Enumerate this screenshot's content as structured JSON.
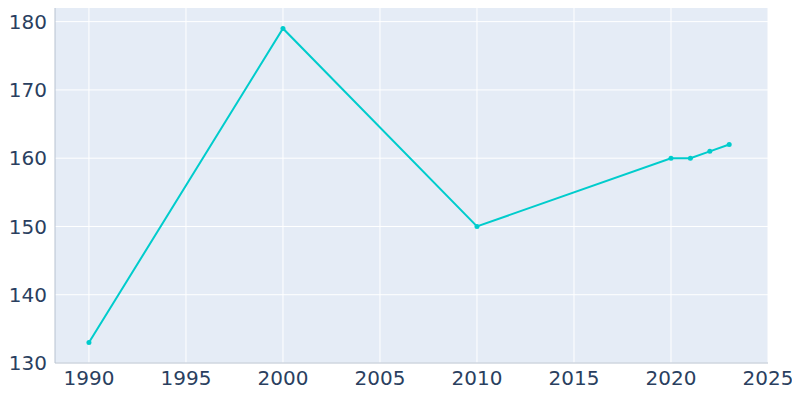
{
  "chart_data": {
    "type": "line",
    "x": [
      1990,
      2000,
      2010,
      2020,
      2021,
      2022,
      2023
    ],
    "values": [
      133,
      179,
      150,
      160,
      160,
      161,
      162
    ],
    "color": "#00cccc",
    "marker": "circle",
    "line_style": "solid",
    "xlim": [
      1988.25,
      2025
    ],
    "xticks": [
      1990,
      1995,
      2000,
      2005,
      2010,
      2015,
      2020,
      2025
    ],
    "ylim": [
      130,
      182
    ],
    "yticks": [
      130,
      140,
      150,
      160,
      170,
      180
    ],
    "grid": true
  }
}
